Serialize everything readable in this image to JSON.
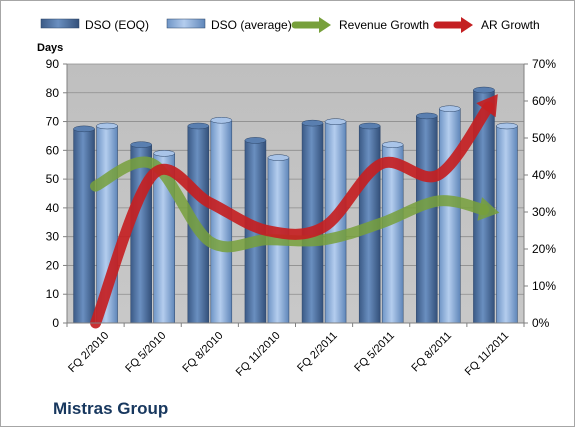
{
  "chart_data": {
    "type": "bar",
    "left_axis_title": "Days",
    "categories": [
      "FQ 2/2010",
      "FQ 5/2010",
      "FQ 8/2010",
      "FQ 11/2010",
      "FQ 2/2011",
      "FQ 5/2011",
      "FQ 8/2011",
      "FQ 11/2011"
    ],
    "ylim": [
      0,
      90
    ],
    "yticks": [
      "0",
      "10",
      "20",
      "30",
      "40",
      "50",
      "60",
      "70",
      "80",
      "90"
    ],
    "y2lim": [
      0,
      0.7
    ],
    "y2ticks": [
      "0%",
      "10%",
      "20%",
      "30%",
      "40%",
      "50%",
      "60%",
      "70%"
    ],
    "series": [
      {
        "name": "DSO (EOQ)",
        "type": "bar",
        "axis": "left",
        "color": "#4a6c9b",
        "values": [
          68.5,
          63,
          69.5,
          64.5,
          70.5,
          69.5,
          73,
          82
        ]
      },
      {
        "name": "DSO (average)",
        "type": "bar",
        "axis": "left",
        "color": "#8fb1dc",
        "values": [
          69.5,
          60,
          71.5,
          58.5,
          71,
          63,
          75.5,
          69.5
        ]
      },
      {
        "name": "Revenue Growth",
        "type": "line",
        "axis": "right",
        "color": "#77a03b",
        "values": [
          0.37,
          0.43,
          0.22,
          0.225,
          0.225,
          0.27,
          0.33,
          0.3
        ]
      },
      {
        "name": "AR Growth",
        "type": "line",
        "axis": "right",
        "color": "#c42022",
        "values": [
          0.0,
          0.4,
          0.325,
          0.25,
          0.26,
          0.43,
          0.4,
          0.61
        ]
      }
    ],
    "legend": "top",
    "grid": true
  },
  "footer": {
    "company": "Mistras Group"
  }
}
